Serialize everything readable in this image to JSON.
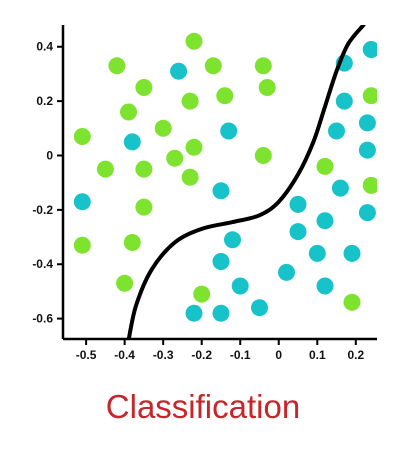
{
  "chart_data": {
    "type": "scatter",
    "title": "Classification",
    "xlabel": "",
    "ylabel": "",
    "xlim": [
      -0.56,
      0.255
    ],
    "ylim": [
      -0.675,
      0.48
    ],
    "x_ticks": [
      -0.5,
      -0.4,
      -0.3,
      -0.2,
      -0.1,
      0,
      0.1,
      0.2
    ],
    "x_tick_labels": [
      "-0.5",
      "-0.4",
      "-0.3",
      "-0.2",
      "-0.1",
      "0",
      "0.1",
      "0.2"
    ],
    "y_ticks": [
      0.4,
      0.2,
      0,
      -0.2,
      -0.4,
      -0.6
    ],
    "y_tick_labels": [
      "0.4",
      "0.2",
      "0",
      "-0.2",
      "-0.4",
      "-0.6"
    ],
    "grid": false,
    "series": [
      {
        "color": "#7ee32f",
        "points": [
          [
            -0.22,
            0.42
          ],
          [
            -0.42,
            0.33
          ],
          [
            -0.17,
            0.33
          ],
          [
            -0.04,
            0.33
          ],
          [
            -0.35,
            0.25
          ],
          [
            -0.03,
            0.25
          ],
          [
            -0.23,
            0.2
          ],
          [
            -0.14,
            0.22
          ],
          [
            -0.39,
            0.16
          ],
          [
            -0.51,
            0.07
          ],
          [
            -0.3,
            0.1
          ],
          [
            -0.22,
            0.03
          ],
          [
            -0.27,
            -0.01
          ],
          [
            -0.04,
            0.0
          ],
          [
            -0.35,
            -0.05
          ],
          [
            -0.45,
            -0.05
          ],
          [
            -0.23,
            -0.08
          ],
          [
            -0.35,
            -0.19
          ],
          [
            -0.51,
            -0.33
          ],
          [
            -0.38,
            -0.32
          ],
          [
            -0.4,
            -0.47
          ],
          [
            -0.2,
            -0.51
          ],
          [
            0.12,
            -0.04
          ],
          [
            0.24,
            0.22
          ],
          [
            0.24,
            -0.11
          ],
          [
            0.19,
            -0.54
          ]
        ]
      },
      {
        "color": "#17c3c8",
        "points": [
          [
            -0.26,
            0.31
          ],
          [
            -0.38,
            0.05
          ],
          [
            -0.13,
            0.09
          ],
          [
            -0.51,
            -0.17
          ],
          [
            -0.15,
            -0.13
          ],
          [
            -0.12,
            -0.31
          ],
          [
            -0.15,
            -0.39
          ],
          [
            -0.22,
            -0.58
          ],
          [
            -0.15,
            -0.58
          ],
          [
            -0.05,
            -0.56
          ],
          [
            -0.1,
            -0.48
          ],
          [
            0.02,
            -0.43
          ],
          [
            0.05,
            -0.18
          ],
          [
            0.05,
            -0.28
          ],
          [
            0.1,
            -0.36
          ],
          [
            0.12,
            -0.24
          ],
          [
            0.12,
            -0.48
          ],
          [
            0.16,
            -0.12
          ],
          [
            0.19,
            -0.36
          ],
          [
            0.23,
            -0.21
          ],
          [
            0.15,
            0.09
          ],
          [
            0.17,
            0.2
          ],
          [
            0.23,
            0.12
          ],
          [
            0.23,
            0.02
          ],
          [
            0.17,
            0.34
          ],
          [
            0.24,
            0.39
          ]
        ]
      }
    ],
    "boundary": [
      [
        -0.39,
        -0.68
      ],
      [
        -0.37,
        -0.55
      ],
      [
        -0.33,
        -0.42
      ],
      [
        -0.27,
        -0.32
      ],
      [
        -0.2,
        -0.27
      ],
      [
        -0.12,
        -0.245
      ],
      [
        -0.05,
        -0.22
      ],
      [
        0.0,
        -0.17
      ],
      [
        0.05,
        -0.07
      ],
      [
        0.09,
        0.05
      ],
      [
        0.12,
        0.18
      ],
      [
        0.15,
        0.31
      ],
      [
        0.18,
        0.41
      ],
      [
        0.22,
        0.48
      ]
    ],
    "boundary_color": "#000000"
  }
}
